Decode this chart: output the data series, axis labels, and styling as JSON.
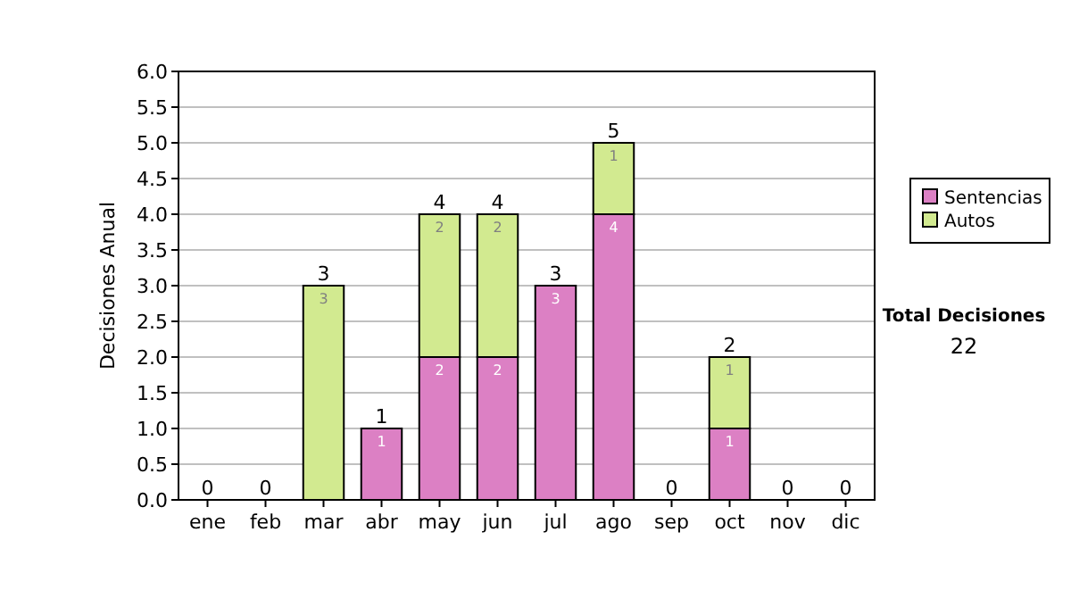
{
  "chart_data": {
    "type": "bar",
    "stacked": true,
    "ylabel": "Decisiones Anual",
    "categories": [
      "ene",
      "feb",
      "mar",
      "abr",
      "may",
      "jun",
      "jul",
      "ago",
      "sep",
      "oct",
      "nov",
      "dic"
    ],
    "series": [
      {
        "name": "Sentencias",
        "color": "#dc80c4",
        "values": [
          0,
          0,
          0,
          1,
          2,
          2,
          3,
          4,
          0,
          1,
          0,
          0
        ],
        "value_labels": [
          null,
          null,
          null,
          "1",
          "2",
          "2",
          "3",
          "4",
          null,
          "1",
          null,
          null
        ]
      },
      {
        "name": "Autos",
        "color": "#d2ea90",
        "values": [
          0,
          0,
          3,
          0,
          2,
          2,
          0,
          1,
          0,
          1,
          0,
          0
        ],
        "value_labels": [
          null,
          null,
          "3",
          null,
          "2",
          "2",
          null,
          "1",
          null,
          "1",
          null,
          null
        ]
      }
    ],
    "totals": [
      "0",
      "0",
      "3",
      "1",
      "4",
      "4",
      "3",
      "5",
      "0",
      "2",
      "0",
      "0"
    ],
    "ylim": [
      0,
      6
    ],
    "yticks": [
      {
        "value": 0,
        "label": "0.0"
      },
      {
        "value": 0.5,
        "label": "0.5"
      },
      {
        "value": 1,
        "label": "1.0"
      },
      {
        "value": 1.5,
        "label": "1.5"
      },
      {
        "value": 2,
        "label": "2.0"
      },
      {
        "value": 2.5,
        "label": "2.5"
      },
      {
        "value": 3,
        "label": "3.0"
      },
      {
        "value": 3.5,
        "label": "3.5"
      },
      {
        "value": 4,
        "label": "4.0"
      },
      {
        "value": 4.5,
        "label": "4.5"
      },
      {
        "value": 5,
        "label": "5.0"
      },
      {
        "value": 5.5,
        "label": "5.5"
      },
      {
        "value": 6,
        "label": "6.0"
      }
    ],
    "grid": "y",
    "legend": "right",
    "annotations": [
      "Total Decisiones",
      "22"
    ]
  }
}
